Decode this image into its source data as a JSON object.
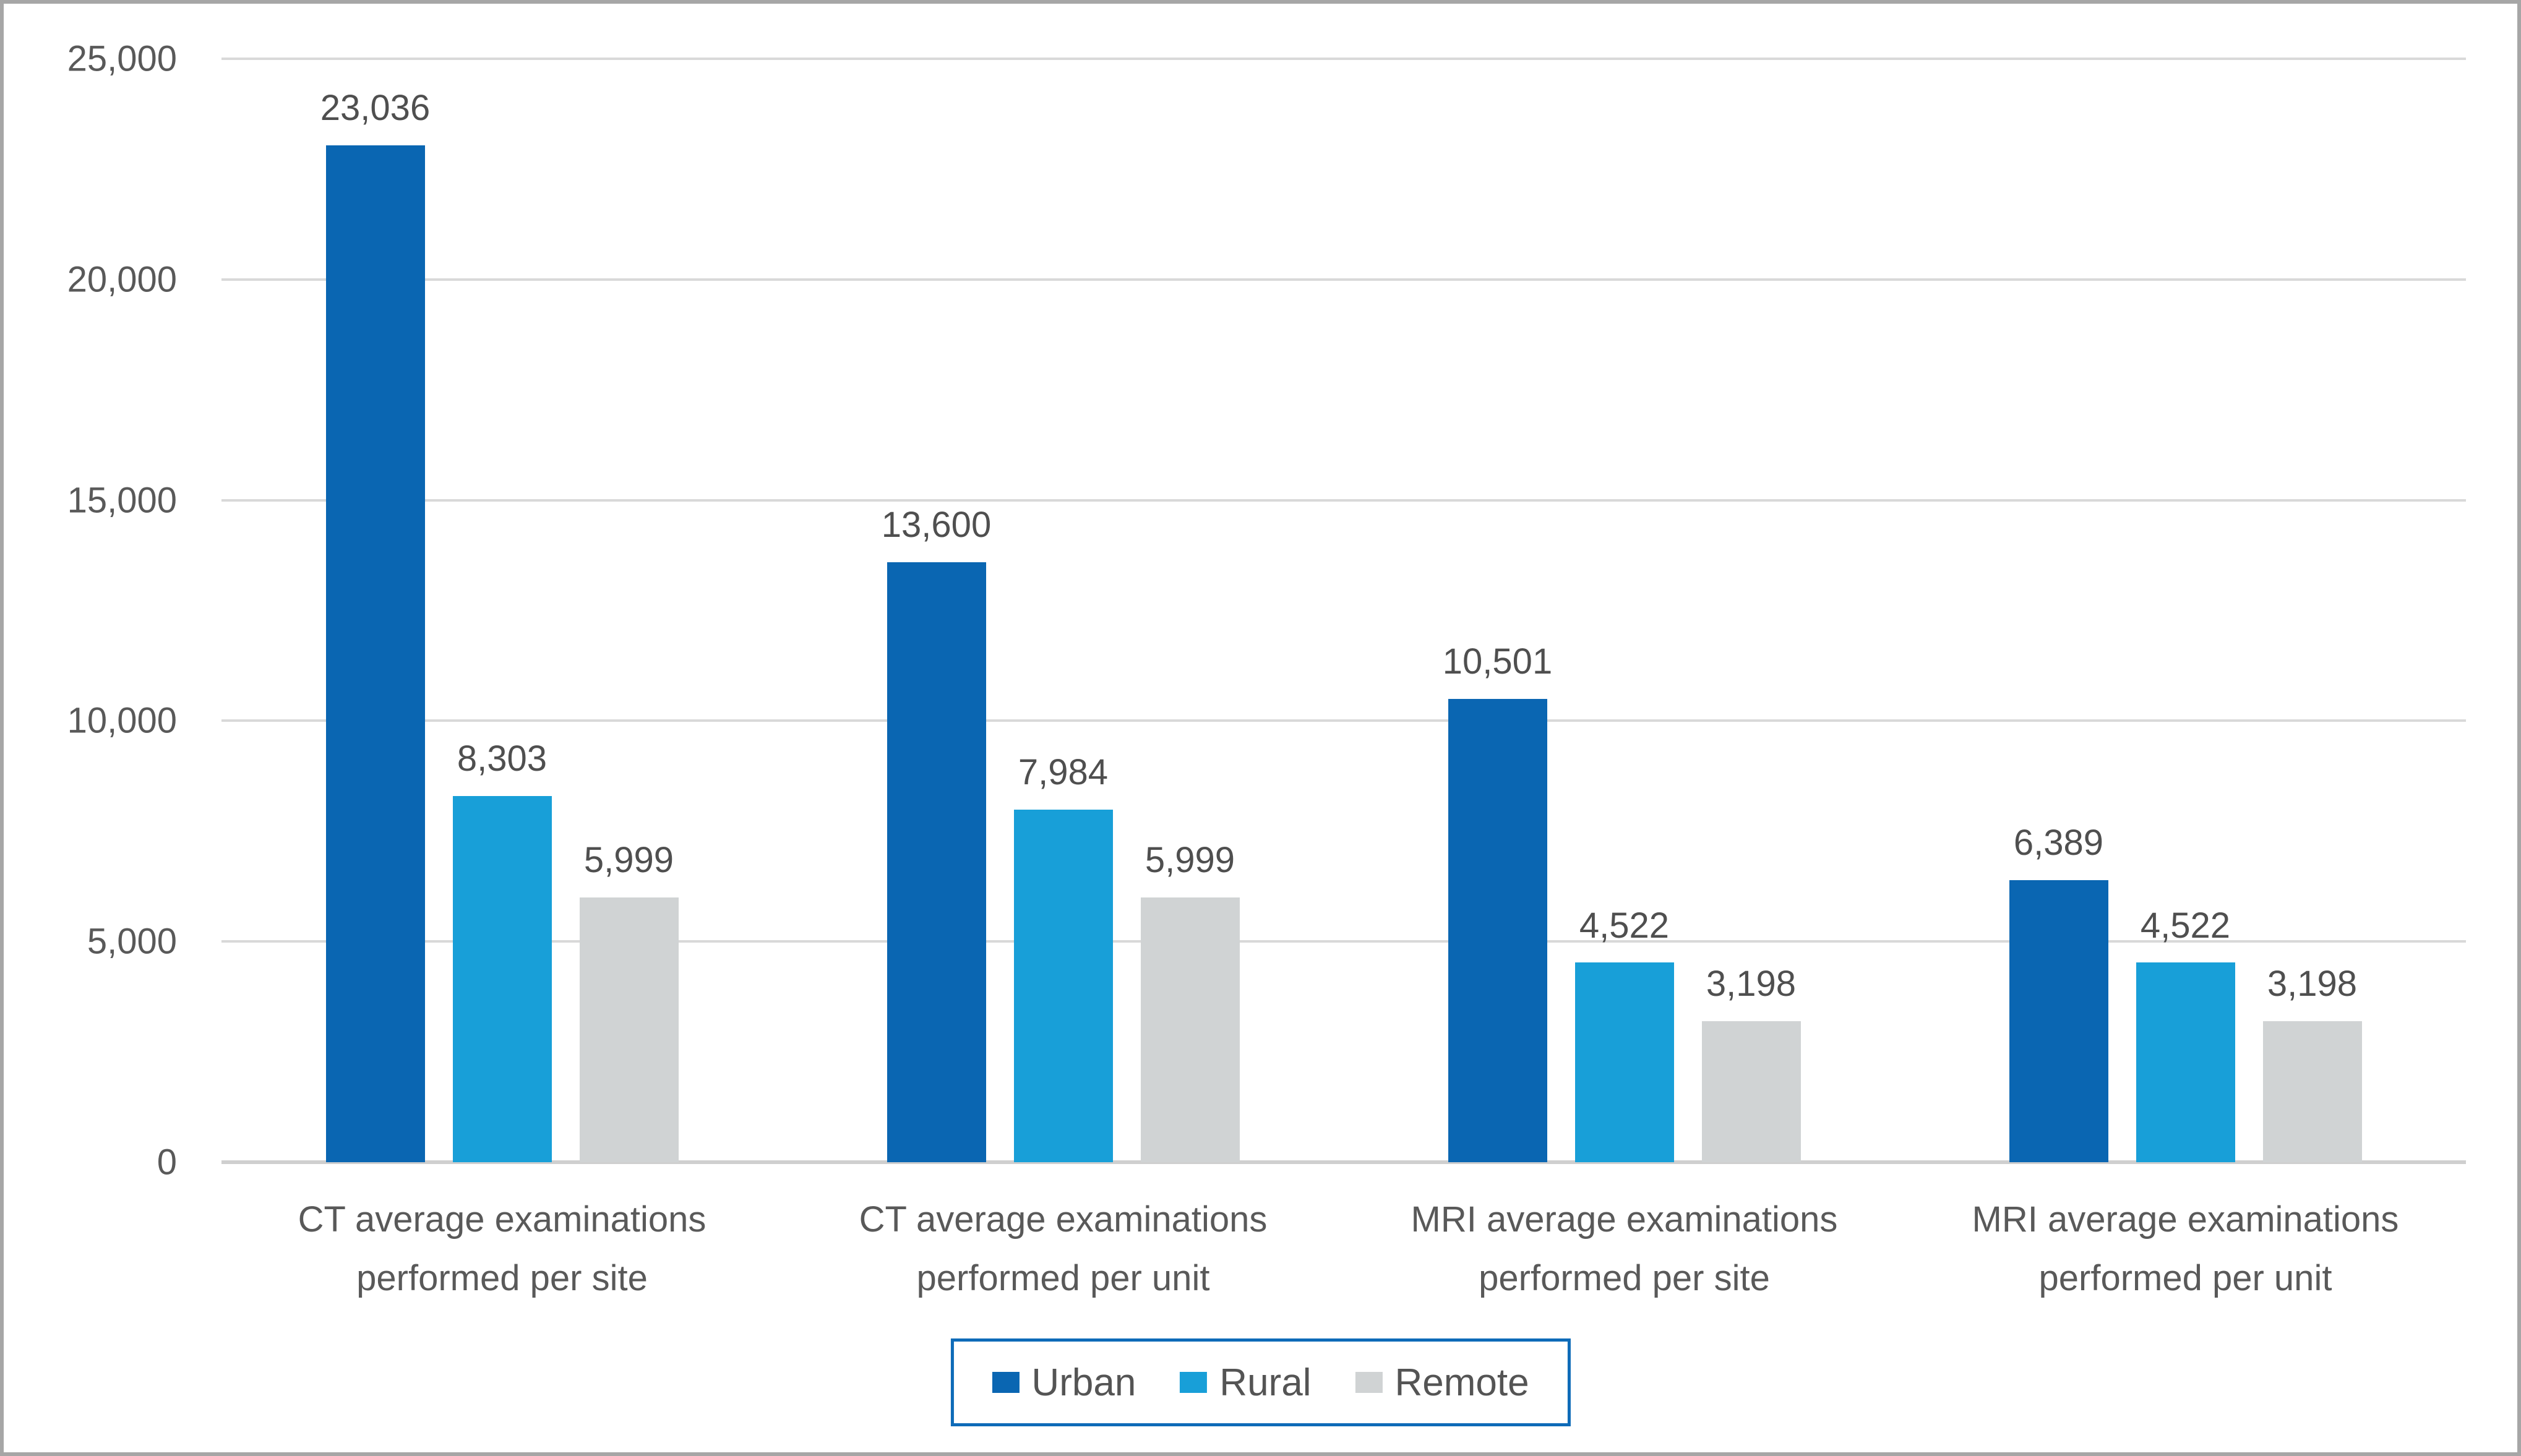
{
  "chart_data": {
    "type": "bar",
    "title": "",
    "categories": [
      "CT average examinations performed per site",
      "CT average examinations performed per unit",
      "MRI average examinations performed per site",
      "MRI average examinations performed per unit"
    ],
    "series": [
      {
        "name": "Urban",
        "color": "#0A66B2",
        "values": [
          23036,
          13600,
          10501,
          6389
        ]
      },
      {
        "name": "Rural",
        "color": "#189FD8",
        "values": [
          8303,
          7984,
          4522,
          4522
        ]
      },
      {
        "name": "Remote",
        "color": "#D0D3D4",
        "values": [
          5999,
          5999,
          3198,
          3198
        ]
      }
    ],
    "data_labels": [
      [
        "23,036",
        "8,303",
        "5,999"
      ],
      [
        "13,600",
        "7,984",
        "5,999"
      ],
      [
        "10,501",
        "4,522",
        "3,198"
      ],
      [
        "6,389",
        "4,522",
        "3,198"
      ]
    ],
    "y_axis": {
      "min": 0,
      "max": 25000,
      "tick_step": 5000,
      "tick_labels": [
        "0",
        "5,000",
        "10,000",
        "15,000",
        "20,000",
        "25,000"
      ],
      "gridlines": true
    },
    "legend": {
      "position": "bottom",
      "entries": [
        "Urban",
        "Rural",
        "Remote"
      ]
    }
  },
  "colors": {
    "frame": "#A6A6A6",
    "gridline": "#D9D9D9",
    "axis_line": "#CFCFCF",
    "tick_text": "#595959",
    "data_label_text": "#4F4F4F",
    "legend_border": "#0E6BB8",
    "legend_text": "#545454",
    "background": "#FFFFFF"
  }
}
